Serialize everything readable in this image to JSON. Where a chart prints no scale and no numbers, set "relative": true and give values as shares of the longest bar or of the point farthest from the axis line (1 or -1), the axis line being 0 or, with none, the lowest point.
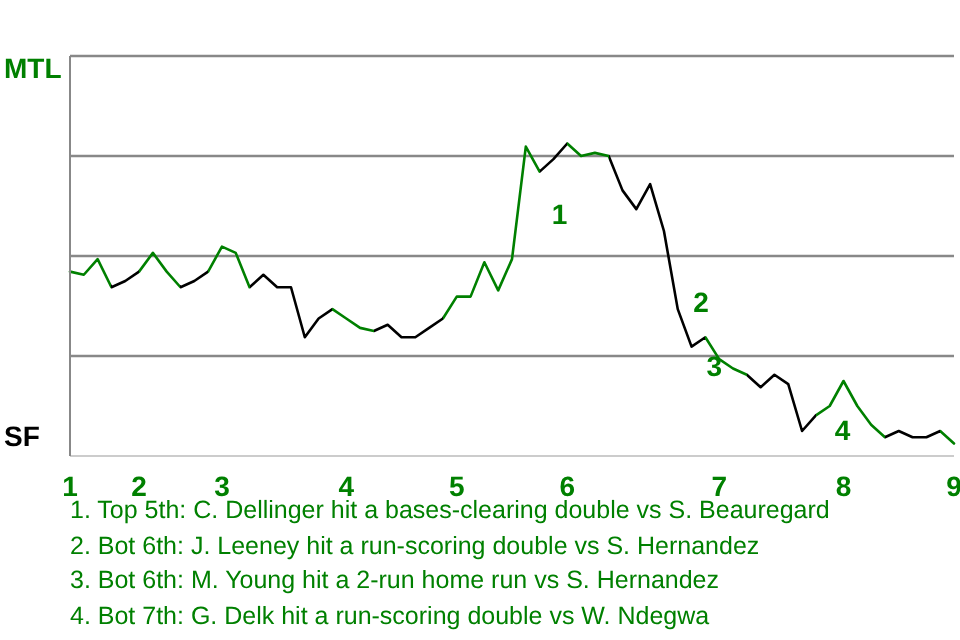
{
  "chart_data": {
    "type": "line",
    "relative": true,
    "categories": [
      "1",
      null,
      null,
      null,
      null,
      "2",
      null,
      null,
      null,
      null,
      null,
      "3",
      null,
      null,
      null,
      null,
      null,
      null,
      null,
      null,
      "4",
      null,
      null,
      null,
      null,
      null,
      null,
      null,
      "5",
      null,
      null,
      null,
      null,
      null,
      null,
      null,
      "6",
      null,
      null,
      null,
      null,
      null,
      null,
      null,
      null,
      null,
      null,
      "7",
      null,
      null,
      null,
      null,
      null,
      null,
      null,
      null,
      "8",
      null,
      null,
      null,
      null,
      null,
      null,
      null,
      "9"
    ],
    "series": [
      {
        "color": "#008000",
        "values": [
          0.59,
          0.58,
          0.63,
          0.54,
          0.56,
          0.59,
          0.65,
          0.59,
          0.54,
          0.56,
          0.59,
          0.67,
          0.65,
          0.54,
          0.58,
          0.54,
          0.54,
          0.38,
          0.44,
          0.47,
          0.44,
          0.41,
          0.4,
          0.42,
          0.38,
          0.38,
          0.41,
          0.44,
          0.51,
          0.51,
          0.62,
          0.53,
          0.63,
          0.99,
          0.91,
          0.95,
          1,
          0.96,
          0.97,
          0.96,
          0.85,
          0.79,
          0.87,
          0.72,
          0.47,
          0.35,
          0.38,
          0.31,
          0.28,
          0.26,
          0.22,
          0.26,
          0.23,
          0.08,
          0.13,
          0.16,
          0.24,
          0.16,
          0.1,
          0.06,
          0.08,
          0.06,
          0.06,
          0.08,
          0.04
        ],
        "colors": [
          "#008000",
          "#008000",
          "#008000",
          "#000000",
          "#000000",
          "#008000",
          "#008000",
          "#008000",
          "#000000",
          "#000000",
          "#008000",
          "#008000",
          "#008000",
          "#000000",
          "#000000",
          "#000000",
          "#000000",
          "#000000",
          "#000000",
          "#008000",
          "#008000",
          "#008000",
          "#000000",
          "#000000",
          "#000000",
          "#000000",
          "#000000",
          "#008000",
          "#008000",
          "#008000",
          "#008000",
          "#008000",
          "#008000",
          "#008000",
          "#000000",
          "#000000",
          "#008000",
          "#008000",
          "#008000",
          "#000000",
          "#000000",
          "#000000",
          "#000000",
          "#000000",
          "#000000",
          "#000000",
          "#008000",
          "#008000",
          "#008000",
          "#000000",
          "#000000",
          "#000000",
          "#000000",
          "#000000",
          "#008000",
          "#008000",
          "#008000",
          "#008000",
          "#008000",
          "#000000",
          "#000000",
          "#000000",
          "#000000",
          "#008000",
          "#008000"
        ]
      }
    ],
    "grid": true,
    "marker": "none",
    "annotations": [
      "MTL",
      "SF",
      "1",
      "2",
      "3",
      "4",
      "1. Top 5th: C. Dellinger hit a bases-clearing double vs S. Beauregard",
      "2. Bot 6th: J. Leeney hit a run-scoring double vs S. Hernandez",
      "3. Bot 6th: M. Young hit a 2-run home run vs S. Hernandez",
      "4. Bot 7th: G. Delk hit a run-scoring double vs W. Ndegwa"
    ]
  }
}
